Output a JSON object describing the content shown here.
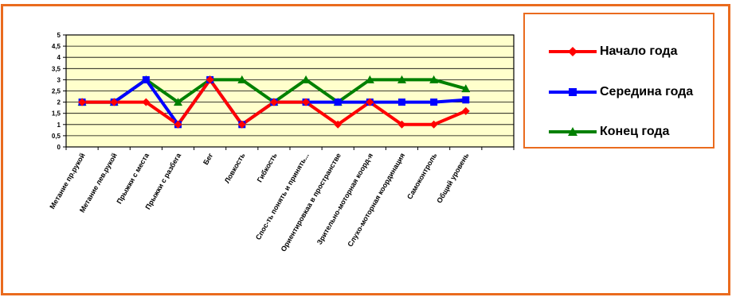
{
  "chart_data": {
    "type": "line",
    "title": "",
    "xlabel": "",
    "ylabel": "",
    "ylim": [
      0,
      5
    ],
    "yticks": [
      "0",
      "0,5",
      "1",
      "1,5",
      "2",
      "2,5",
      "3",
      "3,5",
      "4",
      "4,5",
      "5"
    ],
    "grid": true,
    "plot_background": "#ffffcc",
    "legend_position": "right",
    "categories": [
      "Метание пр.рукой",
      "Метание лев.рукой",
      "Прыжки с места",
      "Прыжки с разбега",
      "Бег",
      "Ловкость",
      "Гибкость",
      "Спос-ть понять и принять...",
      "Ориентировкаа в пространстве",
      "Зрительно-моторная коорд-я",
      "Слухо-моторная координация",
      "Самоконтроль",
      "Общий уровень"
    ],
    "series": [
      {
        "name": "Начало года",
        "color": "#ff0000",
        "marker": "diamond",
        "values": [
          2,
          2,
          2,
          1,
          3,
          1,
          2,
          2,
          1,
          2,
          1,
          1,
          1.6
        ]
      },
      {
        "name": "Середина года",
        "color": "#0000ff",
        "marker": "square",
        "values": [
          2,
          2,
          3,
          1,
          3,
          1,
          2,
          2,
          2,
          2,
          2,
          2,
          2.1
        ]
      },
      {
        "name": "Конец года",
        "color": "#008000",
        "marker": "triangle",
        "values": [
          2,
          2,
          3,
          2,
          3,
          3,
          2,
          3,
          2,
          3,
          3,
          3,
          2.6
        ]
      }
    ]
  }
}
